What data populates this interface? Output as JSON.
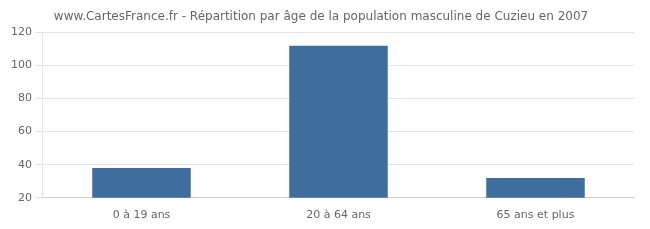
{
  "chart_data": {
    "type": "bar",
    "title": "www.CartesFrance.fr - Répartition par âge de la population masculine de Cuzieu en 2007",
    "categories": [
      "0 à 19 ans",
      "20 à 64 ans",
      "65 ans et plus"
    ],
    "values": [
      38,
      112,
      32
    ],
    "color": "#3d6e9e",
    "ylim": [
      20,
      120
    ],
    "yticks": [
      20,
      40,
      60,
      80,
      100,
      120
    ],
    "grid": true
  }
}
